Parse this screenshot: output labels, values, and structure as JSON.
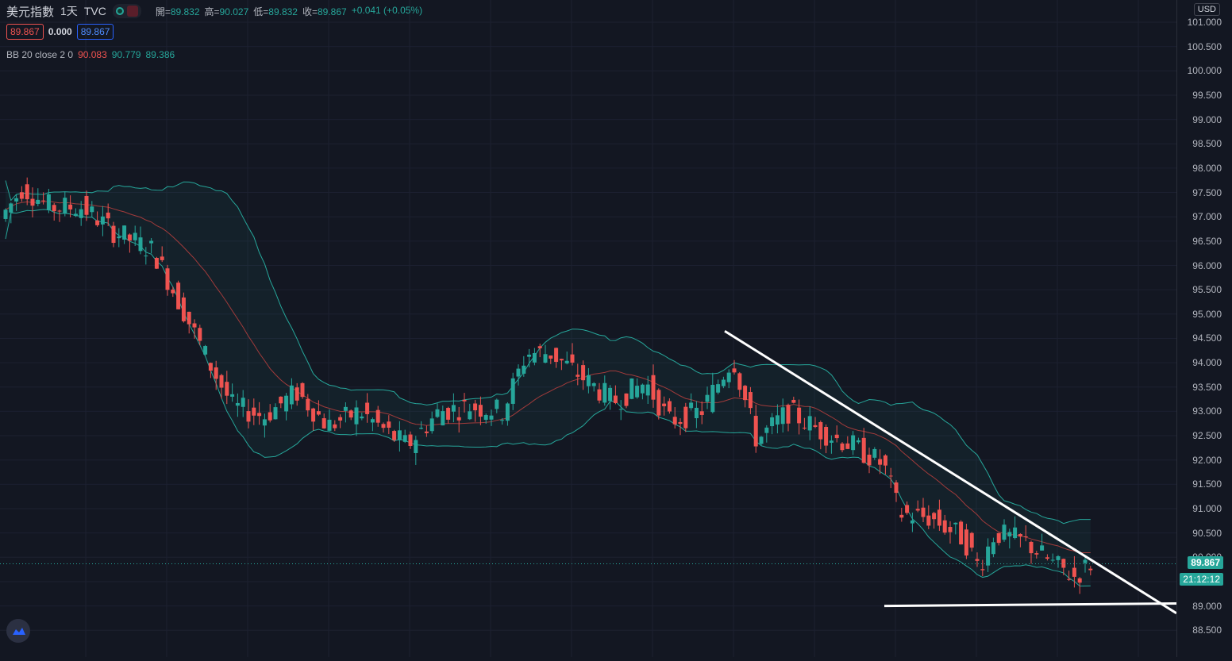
{
  "header": {
    "symbol": "美元指數",
    "interval": "1天",
    "source": "TVC",
    "ohlc": [
      {
        "label": "開=",
        "value": "89.832"
      },
      {
        "label": "高=",
        "value": "90.027"
      },
      {
        "label": "低=",
        "value": "89.832"
      },
      {
        "label": "收=",
        "value": "89.867"
      },
      {
        "label": "",
        "value": "+0.041 (+0.05%)"
      }
    ]
  },
  "quote": {
    "bid": "89.867",
    "spread": "0.000",
    "ask": "89.867"
  },
  "indicator": {
    "name": "BB 20 close 2 0",
    "basis": "90.083",
    "upper": "90.779",
    "lower": "89.386"
  },
  "price_axis": {
    "currency": "USD",
    "ticks": [
      "101.000",
      "100.500",
      "100.000",
      "99.500",
      "99.000",
      "98.500",
      "98.000",
      "97.500",
      "97.000",
      "96.500",
      "96.000",
      "95.500",
      "95.000",
      "94.500",
      "94.000",
      "93.500",
      "93.000",
      "92.500",
      "92.000",
      "91.500",
      "91.000",
      "90.500",
      "90.000",
      "89.000",
      "88.500"
    ],
    "last_price": "89.867",
    "countdown": "21:12:12"
  },
  "colors": {
    "up": "#26a69a",
    "down": "#ef5350",
    "band": "#26a69a",
    "basis": "#a23b3b",
    "trend": "#ffffff"
  },
  "chart_data": {
    "type": "candlestick",
    "indicator": "Bollinger Bands (20, 2)",
    "ylim": [
      88.3,
      101.2
    ],
    "trendlines": [
      {
        "name": "descending",
        "from_price": 94.65,
        "to_price": 88.85
      },
      {
        "name": "horizontal support",
        "from_price": 89.0,
        "to_price": 89.05
      }
    ]
  }
}
